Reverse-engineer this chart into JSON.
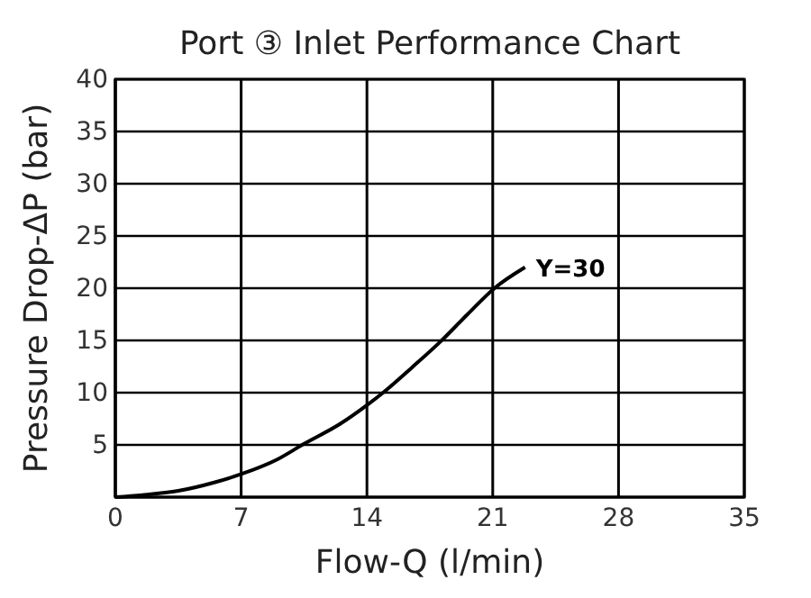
{
  "chart_data": {
    "type": "line",
    "title": "Port ③ Inlet  Performance Chart",
    "xlabel": "Flow-Q (l/min)",
    "ylabel": "Pressure Drop-ΔP (bar)",
    "xlim": [
      0,
      35
    ],
    "xticks": [
      0,
      7,
      14,
      21,
      28,
      35
    ],
    "ylim": [
      0,
      40
    ],
    "yticks": [
      5,
      10,
      15,
      20,
      25,
      30,
      35,
      40
    ],
    "grid": true,
    "line_style": "solid",
    "marker": "none",
    "series": [
      {
        "name": "Y=30",
        "color": "#000000",
        "x": [
          0,
          1.5,
          3.5,
          5.5,
          7,
          9,
          10.5,
          12.5,
          14,
          14.9,
          16.5,
          18.1,
          19.6,
          21.1,
          22.8
        ],
        "values": [
          0,
          0.2,
          0.6,
          1.4,
          2.2,
          3.6,
          5.1,
          7,
          8.8,
          10,
          12.4,
          14.9,
          17.5,
          20,
          22
        ]
      }
    ]
  }
}
